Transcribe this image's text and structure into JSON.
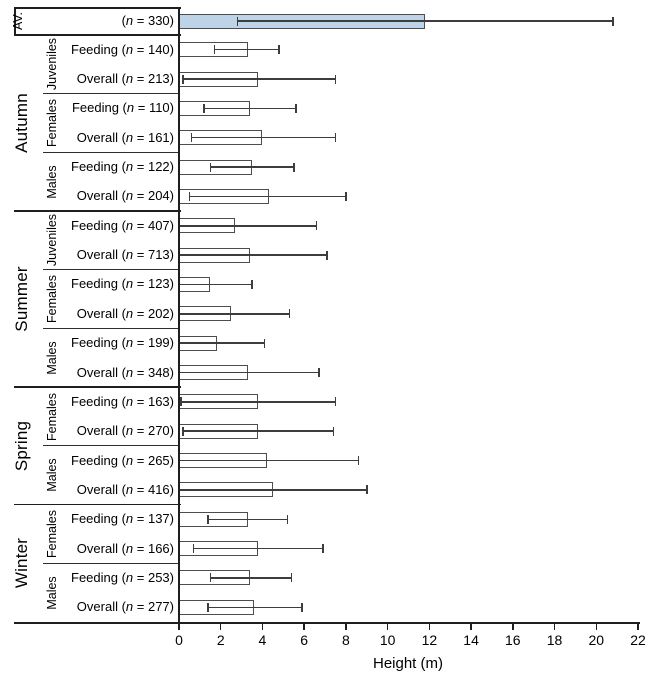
{
  "chart_data": {
    "type": "bar",
    "orientation": "horizontal",
    "xlabel": "Height (m)",
    "xlim": [
      0,
      22
    ],
    "xticks": [
      0,
      2,
      4,
      6,
      8,
      10,
      12,
      14,
      16,
      18,
      20,
      22
    ],
    "colors": {
      "average_fill": "#bdd3e8",
      "default_fill": "#ffffff",
      "bar_border": "#4d4d4d",
      "error_bar": "#3d3d3d"
    },
    "average": {
      "group_label": "AV.",
      "label_prefix": "",
      "n": 330,
      "value": 11.8,
      "err_lo": 2.8,
      "err_hi": 20.8
    },
    "groups": [
      {
        "season": "Autumn",
        "subgroups": [
          {
            "name": "Juveniles",
            "rows": [
              {
                "label_prefix": "Feeding",
                "n": 140,
                "value": 3.3,
                "err_lo": 1.7,
                "err_hi": 4.8
              },
              {
                "label_prefix": "Overall",
                "n": 213,
                "value": 3.8,
                "err_lo": 0.2,
                "err_hi": 7.5
              }
            ]
          },
          {
            "name": "Females",
            "rows": [
              {
                "label_prefix": "Feeding",
                "n": 110,
                "value": 3.4,
                "err_lo": 1.2,
                "err_hi": 5.6
              },
              {
                "label_prefix": "Overall",
                "n": 161,
                "value": 4.0,
                "err_lo": 0.6,
                "err_hi": 7.5
              }
            ]
          },
          {
            "name": "Males",
            "rows": [
              {
                "label_prefix": "Feeding",
                "n": 122,
                "value": 3.5,
                "err_lo": 1.5,
                "err_hi": 5.5
              },
              {
                "label_prefix": "Overall",
                "n": 204,
                "value": 4.3,
                "err_lo": 0.5,
                "err_hi": 8.0
              }
            ]
          }
        ]
      },
      {
        "season": "Summer",
        "subgroups": [
          {
            "name": "Juveniles",
            "rows": [
              {
                "label_prefix": "Feeding",
                "n": 407,
                "value": 2.7,
                "err_lo": 0,
                "err_hi": 6.6
              },
              {
                "label_prefix": "Overall",
                "n": 713,
                "value": 3.4,
                "err_lo": 0,
                "err_hi": 7.1
              }
            ]
          },
          {
            "name": "Females",
            "rows": [
              {
                "label_prefix": "Feeding",
                "n": 123,
                "value": 1.5,
                "err_lo": 0,
                "err_hi": 3.5
              },
              {
                "label_prefix": "Overall",
                "n": 202,
                "value": 2.5,
                "err_lo": 0,
                "err_hi": 5.3
              }
            ]
          },
          {
            "name": "Males",
            "rows": [
              {
                "label_prefix": "Feeding",
                "n": 199,
                "value": 1.8,
                "err_lo": 0,
                "err_hi": 4.1
              },
              {
                "label_prefix": "Overall",
                "n": 348,
                "value": 3.3,
                "err_lo": 0,
                "err_hi": 6.7
              }
            ]
          }
        ]
      },
      {
        "season": "Spring",
        "subgroups": [
          {
            "name": "Females",
            "rows": [
              {
                "label_prefix": "Feeding",
                "n": 163,
                "value": 3.8,
                "err_lo": 0.1,
                "err_hi": 7.5
              },
              {
                "label_prefix": "Overall",
                "n": 270,
                "value": 3.8,
                "err_lo": 0.2,
                "err_hi": 7.4
              }
            ]
          },
          {
            "name": "Males",
            "rows": [
              {
                "label_prefix": "Feeding",
                "n": 265,
                "value": 4.2,
                "err_lo": 0,
                "err_hi": 8.6
              },
              {
                "label_prefix": "Overall",
                "n": 416,
                "value": 4.5,
                "err_lo": 0,
                "err_hi": 9.0
              }
            ]
          }
        ]
      },
      {
        "season": "Winter",
        "subgroups": [
          {
            "name": "Females",
            "rows": [
              {
                "label_prefix": "Feeding",
                "n": 137,
                "value": 3.3,
                "err_lo": 1.4,
                "err_hi": 5.2
              },
              {
                "label_prefix": "Overall",
                "n": 166,
                "value": 3.8,
                "err_lo": 0.7,
                "err_hi": 6.9
              }
            ]
          },
          {
            "name": "Males",
            "rows": [
              {
                "label_prefix": "Feeding",
                "n": 253,
                "value": 3.4,
                "err_lo": 1.5,
                "err_hi": 5.4
              },
              {
                "label_prefix": "Overall",
                "n": 277,
                "value": 3.6,
                "err_lo": 1.4,
                "err_hi": 5.9
              }
            ]
          }
        ]
      }
    ]
  }
}
